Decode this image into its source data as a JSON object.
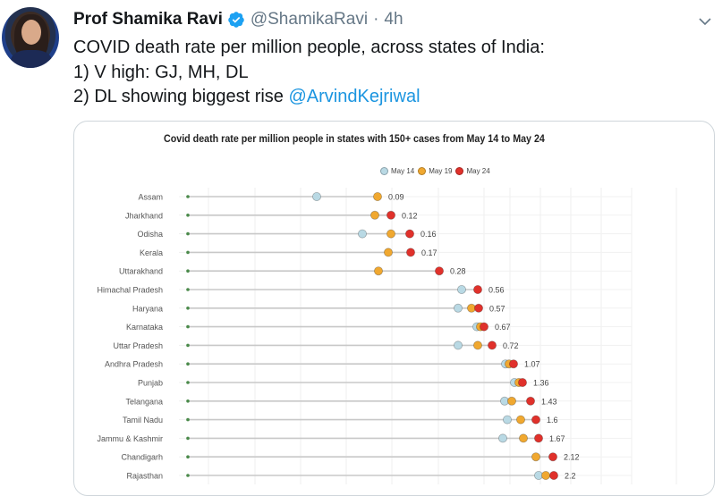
{
  "tweet": {
    "author_name": "Prof Shamika Ravi",
    "handle": "@ShamikaRavi",
    "separator": "·",
    "time": "4h",
    "verified": true,
    "lines": [
      "COVID death rate per million people, across states of India:",
      "1) V high: GJ, MH, DL",
      "2) DL showing biggest rise "
    ],
    "mention": "@ArvindKejriwal",
    "colors": {
      "link": "#1b95e0",
      "verified_badge": "#1da1f2",
      "handle": "#657786"
    }
  },
  "chart_data": {
    "type": "scatter",
    "subtype": "dumbbell",
    "title": "Covid death rate per million people in states with 150+ cases from May 14 to May 24",
    "xlabel": "",
    "ylabel": "",
    "grid": true,
    "legend_position": "top",
    "legend": [
      {
        "name": "May 14",
        "color": "#b9d9e4"
      },
      {
        "name": "May 19",
        "color": "#f0a830"
      },
      {
        "name": "May 24",
        "color": "#e0312b"
      }
    ],
    "categories": [
      "Assam",
      "Jharkhand",
      "Odisha",
      "Kerala",
      "Uttarakhand",
      "Himachal Pradesh",
      "Haryana",
      "Karnataka",
      "Uttar Pradesh",
      "Andhra Pradesh",
      "Punjab",
      "Telangana",
      "Tamil Nadu",
      "Jammu & Kashmir",
      "Chandigarh",
      "Rajasthan"
    ],
    "labels_may24": [
      "0.09",
      "0.12",
      "0.16",
      "0.17",
      "0.28",
      "0.56",
      "0.57",
      "0.67",
      "0.72",
      "1.07",
      "1.36",
      "1.43",
      "1.6",
      "1.67",
      "2.12",
      "2.2"
    ],
    "pixel_x": {
      "note": "approximate on-screen x positions of markers (page px)",
      "May 14": [
        353,
        null,
        404,
        null,
        null,
        515,
        511,
        532,
        511,
        564,
        574,
        563,
        566,
        561,
        null,
        601
      ],
      "May 19": [
        421,
        418,
        436,
        433,
        422,
        null,
        526,
        536,
        533,
        568,
        579,
        571,
        581,
        584,
        598,
        609
      ],
      "May 24": [
        null,
        436,
        457,
        458,
        490,
        533,
        534,
        540,
        549,
        573,
        583,
        592,
        598,
        601,
        617,
        618
      ]
    },
    "series": [
      {
        "name": "May 24",
        "values": [
          0.09,
          0.12,
          0.16,
          0.17,
          0.28,
          0.56,
          0.57,
          0.67,
          0.72,
          1.07,
          1.36,
          1.43,
          1.6,
          1.67,
          2.12,
          2.2
        ]
      }
    ]
  }
}
